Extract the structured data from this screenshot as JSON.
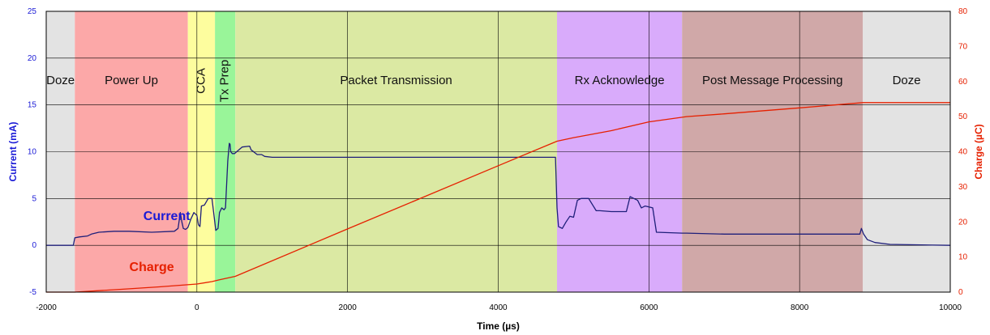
{
  "chart_data": {
    "type": "line",
    "xlabel": "Time (µs)",
    "ylabel_left": "Current (mA)",
    "ylabel_right": "Charge (µC)",
    "xlim": [
      -2000,
      10000
    ],
    "ylim_left": [
      -5,
      25
    ],
    "ylim_right": [
      0,
      80
    ],
    "x_ticks": [
      -2000,
      0,
      2000,
      4000,
      6000,
      8000,
      10000
    ],
    "y_left_ticks": [
      -5,
      0,
      5,
      10,
      15,
      20,
      25
    ],
    "y_right_ticks": [
      0,
      10,
      20,
      30,
      40,
      50,
      60,
      70,
      80
    ],
    "grid": true,
    "phases": [
      {
        "label": "Doze",
        "start": -2000,
        "end": -1620,
        "color": "#e3e3e3",
        "vertical": false
      },
      {
        "label": "Power Up",
        "start": -1620,
        "end": -120,
        "color": "#fca8a8",
        "vertical": false
      },
      {
        "label": "CCA",
        "start": -120,
        "end": 240,
        "color": "#fdfd9e",
        "vertical": true
      },
      {
        "label": "Tx Prep",
        "start": 240,
        "end": 510,
        "color": "#99f599",
        "vertical": true
      },
      {
        "label": "Packet Transmission",
        "start": 510,
        "end": 4780,
        "color": "#dbe9a3",
        "vertical": false
      },
      {
        "label": "Rx Acknowledge",
        "start": 4780,
        "end": 6440,
        "color": "#d9abfb",
        "vertical": false
      },
      {
        "label": "Post Message Processing",
        "start": 6440,
        "end": 8840,
        "color": "#d0a8a8",
        "vertical": false
      },
      {
        "label": "Doze",
        "start": 8840,
        "end": 10000,
        "color": "#e3e3e3",
        "vertical": false
      }
    ],
    "series": [
      {
        "name": "Current",
        "axis": "left",
        "color": "#1f1f7a",
        "x": [
          -2000,
          -1640,
          -1620,
          -1560,
          -1450,
          -1400,
          -1300,
          -1100,
          -900,
          -600,
          -300,
          -250,
          -220,
          -200,
          -180,
          -150,
          -120,
          -80,
          -40,
          0,
          20,
          40,
          60,
          100,
          150,
          200,
          230,
          250,
          280,
          300,
          330,
          360,
          380,
          410,
          430,
          440,
          450,
          470,
          500,
          600,
          700,
          720,
          800,
          860,
          900,
          1000,
          1200,
          2000,
          3000,
          4000,
          4760,
          4780,
          4800,
          4850,
          4900,
          4950,
          5000,
          5050,
          5100,
          5200,
          5300,
          5350,
          5500,
          5700,
          5750,
          5800,
          5850,
          5900,
          5950,
          6050,
          6100,
          6440,
          6500,
          7000,
          8000,
          8800,
          8820,
          8850,
          8900,
          9000,
          9200,
          10000
        ],
        "y": [
          0,
          0,
          0.8,
          0.9,
          1.0,
          1.2,
          1.4,
          1.5,
          1.5,
          1.4,
          1.5,
          1.8,
          3.5,
          2.5,
          1.8,
          1.7,
          1.9,
          2.8,
          3.5,
          3.2,
          2.2,
          2.0,
          4.2,
          4.3,
          5.0,
          5.0,
          3.0,
          1.6,
          1.8,
          3.5,
          4.0,
          3.8,
          4.0,
          9.0,
          10.9,
          10.8,
          10.0,
          9.8,
          9.8,
          10.5,
          10.6,
          10.2,
          9.7,
          9.7,
          9.5,
          9.4,
          9.4,
          9.4,
          9.4,
          9.4,
          9.4,
          4.0,
          2.0,
          1.8,
          2.5,
          3.1,
          3.0,
          4.8,
          5.0,
          5.0,
          3.7,
          3.7,
          3.6,
          3.6,
          5.2,
          5.0,
          4.8,
          4.0,
          4.2,
          4.0,
          1.4,
          1.3,
          1.3,
          1.2,
          1.2,
          1.2,
          1.8,
          1.2,
          0.6,
          0.3,
          0.1,
          0
        ]
      },
      {
        "name": "Charge",
        "axis": "right",
        "color": "#e62000",
        "x": [
          -2000,
          -1620,
          -1000,
          -500,
          0,
          200,
          300,
          510,
          2000,
          3000,
          4000,
          4780,
          5000,
          5500,
          6000,
          6500,
          7000,
          8000,
          8840,
          10000
        ],
        "y": [
          0,
          0,
          0.8,
          1.5,
          2.3,
          3.0,
          3.5,
          4.5,
          18.0,
          27.0,
          36.0,
          43.0,
          44.0,
          46.0,
          48.5,
          50.0,
          50.8,
          52.5,
          54.0,
          54.0
        ]
      }
    ],
    "annotations": [
      {
        "text": "Current",
        "x": -400,
        "y": 2.7,
        "axis": "left"
      },
      {
        "text": "Charge",
        "x": -600,
        "y": 6.0,
        "axis": "right"
      }
    ]
  }
}
